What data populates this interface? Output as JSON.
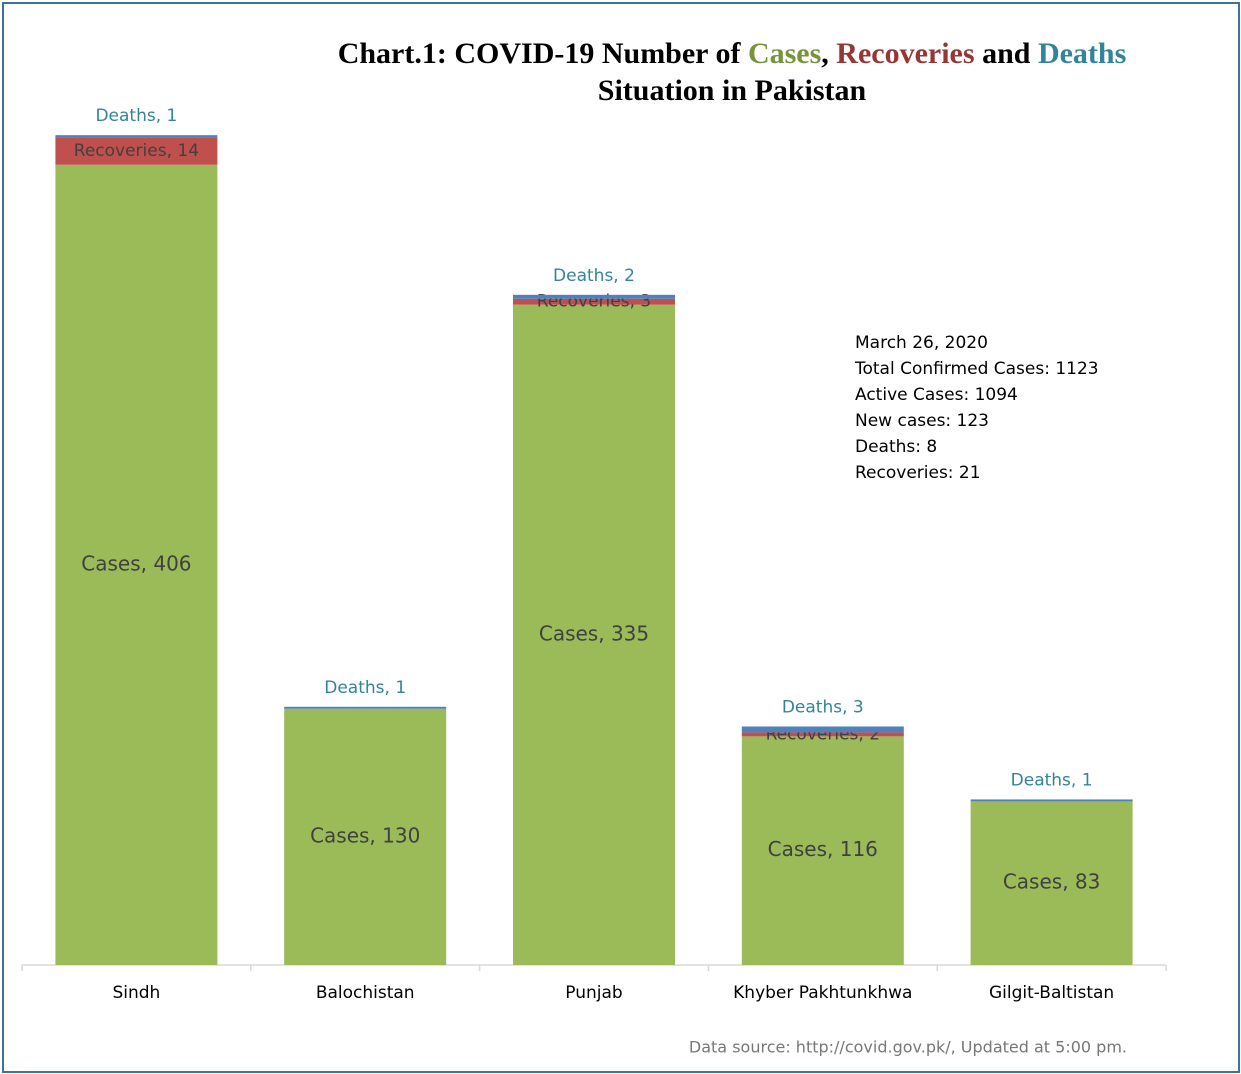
{
  "chart_data": {
    "type": "stacked_bar",
    "title_parts": [
      "Chart.1: COVID-19 Number of",
      ",",
      "and"
    ],
    "title_line2": "Situation in Pakistan",
    "categories": [
      "Sindh",
      "Balochistan",
      "Punjab",
      "Khyber Pakhtunkhwa",
      "Gilgit-Baltistan"
    ],
    "series": [
      {
        "name": "Cases",
        "color": "#9bbb59",
        "title_color": "#77933c",
        "label_color": "#404040",
        "values": [
          406,
          130,
          335,
          116,
          83
        ],
        "value_labels": [
          "Cases, 406",
          "Cases, 130",
          "Cases, 335",
          "Cases, 116",
          "Cases, 83"
        ]
      },
      {
        "name": "Recoveries",
        "color": "#c0504d",
        "title_color": "#953735",
        "label_color": "#404040",
        "values": [
          14,
          0,
          3,
          2,
          0
        ],
        "value_labels": [
          "Recoveries, 14",
          null,
          "Recoveries, 3",
          "Recoveries, 2",
          null
        ]
      },
      {
        "name": "Deaths",
        "color": "#4f81bd",
        "title_color": "#31849b",
        "label_color": "#31849b",
        "values": [
          1,
          1,
          2,
          3,
          1
        ],
        "value_labels": [
          "Deaths, 1",
          "Deaths, 1",
          "Deaths, 2",
          "Deaths, 3",
          "Deaths, 1"
        ]
      }
    ],
    "ylim": [
      0,
      450
    ],
    "annotation": [
      "March 26, 2020",
      "Total Confirmed Cases: 1123",
      "Active Cases: 1094",
      "New cases: 123",
      "Deaths: 8",
      "Recoveries: 21"
    ],
    "source": "Data source: http://covid.gov.pk/, Updated at 5:00 pm."
  }
}
